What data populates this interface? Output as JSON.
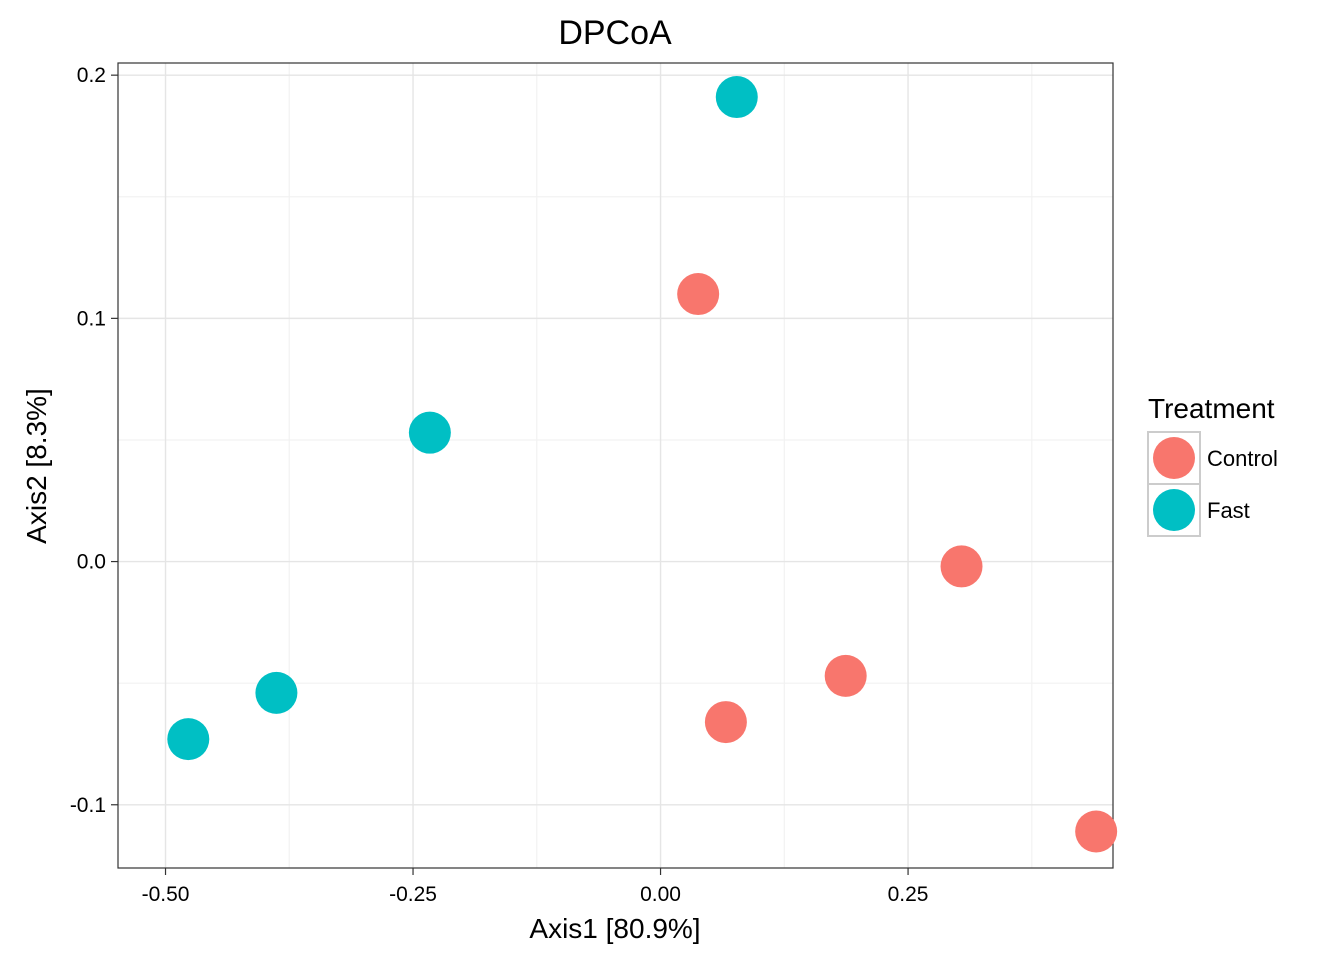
{
  "chart_data": {
    "type": "scatter",
    "title": "DPCoA",
    "xlabel": "Axis1   [80.9%]",
    "ylabel": "Axis2   [8.3%]",
    "xlim": [
      -0.548,
      0.457
    ],
    "ylim": [
      -0.126,
      0.205
    ],
    "xticks": [
      {
        "value": -0.5,
        "label": "-0.50"
      },
      {
        "value": -0.25,
        "label": "-0.25"
      },
      {
        "value": 0.0,
        "label": "0.00"
      },
      {
        "value": 0.25,
        "label": "0.25"
      }
    ],
    "yticks": [
      {
        "value": -0.1,
        "label": "-0.1"
      },
      {
        "value": 0.0,
        "label": "0.0"
      },
      {
        "value": 0.1,
        "label": "0.1"
      },
      {
        "value": 0.2,
        "label": "0.2"
      }
    ],
    "grid": true,
    "legend": {
      "title": "Treatment",
      "position": "right"
    },
    "series": [
      {
        "name": "Control",
        "color": "#F8766D",
        "points": [
          {
            "x": 0.038,
            "y": 0.11
          },
          {
            "x": 0.304,
            "y": -0.002
          },
          {
            "x": 0.187,
            "y": -0.047
          },
          {
            "x": 0.066,
            "y": -0.066
          },
          {
            "x": 0.44,
            "y": -0.111
          }
        ]
      },
      {
        "name": "Fast",
        "color": "#00BFC4",
        "points": [
          {
            "x": 0.077,
            "y": 0.191
          },
          {
            "x": -0.233,
            "y": 0.053
          },
          {
            "x": -0.388,
            "y": -0.054
          },
          {
            "x": -0.477,
            "y": -0.073
          }
        ]
      }
    ]
  }
}
